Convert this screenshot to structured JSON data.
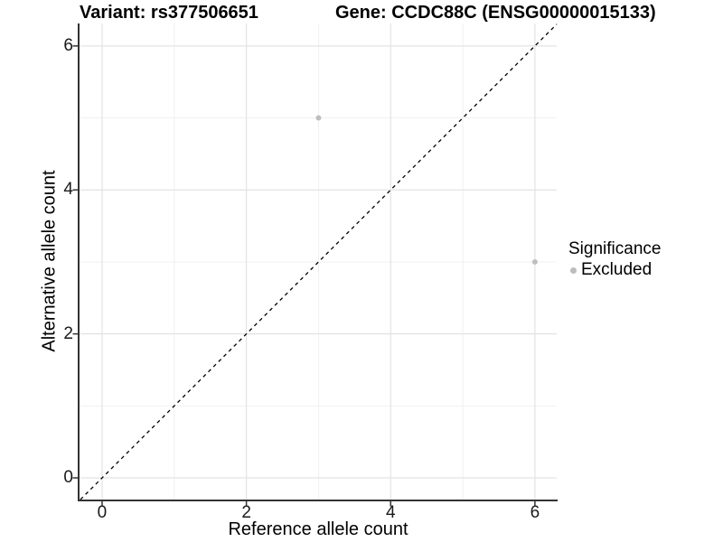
{
  "plot": {
    "title_left": "Variant: rs377506651",
    "title_right": "Gene: CCDC88C (ENSG00000015133)"
  },
  "axes": {
    "x": {
      "title": "Reference allele count",
      "tick_labels": [
        "0",
        "2",
        "4",
        "6"
      ]
    },
    "y": {
      "title": "Alternative allele count",
      "tick_labels": [
        "0",
        "2",
        "4",
        "6"
      ]
    }
  },
  "legend": {
    "title": "Significance",
    "items": [
      {
        "label": "Excluded",
        "marker_color": "#bdbdbd"
      }
    ]
  },
  "chart_data": {
    "type": "scatter",
    "title": "Variant: rs377506651 / Gene: CCDC88C (ENSG00000015133)",
    "xlabel": "Reference allele count",
    "ylabel": "Alternative allele count",
    "xlim": [
      -0.313,
      6.302
    ],
    "ylim": [
      -0.301,
      6.312
    ],
    "x_ticks": [
      0,
      2,
      4,
      6
    ],
    "y_ticks": [
      0,
      2,
      4,
      6
    ],
    "x_minor_ticks": [
      1,
      3,
      5
    ],
    "y_minor_ticks": [
      1,
      3,
      5
    ],
    "grid": true,
    "legend_position": "right",
    "series": [
      {
        "name": "Excluded",
        "color": "#bfbfbf",
        "points": [
          [
            3,
            5
          ],
          [
            6,
            3
          ]
        ]
      }
    ],
    "reference_line": {
      "type": "identity y=x",
      "style": "dashed",
      "color": "#000000"
    },
    "colors": {
      "grid_major": "#e3e3e3",
      "grid_minor": "#f0f0f0",
      "axis_line": "#333333",
      "tick_mark": "#333333",
      "tick_label": "#1a1a1a"
    }
  }
}
